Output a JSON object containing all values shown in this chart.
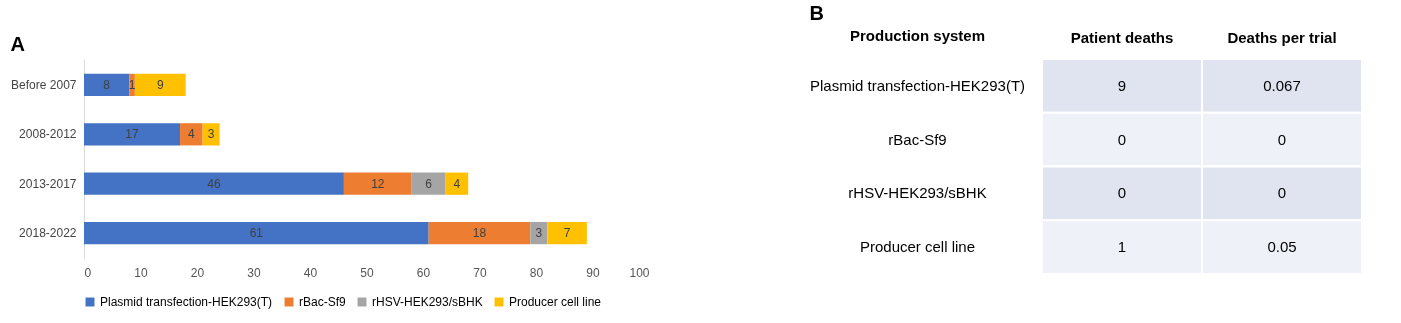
{
  "chart_data": [
    {
      "type": "bar",
      "title": "A",
      "orientation": "horizontal",
      "stacked": true,
      "data_labels": true,
      "legend": "bottom",
      "categories": [
        "Before 2007",
        "2008-2012",
        "2013-2017",
        "2018-2022"
      ],
      "series": [
        {
          "name": "Plasmid transfection-HEK293(T)",
          "color": "#4472c4",
          "values": [
            8,
            17,
            46,
            61
          ]
        },
        {
          "name": "rBac-Sf9",
          "color": "#ed7d31",
          "values": [
            1,
            4,
            12,
            18
          ]
        },
        {
          "name": "rHSV-HEK293/sBHK",
          "color": "#a5a5a5",
          "values": [
            null,
            null,
            6,
            3
          ]
        },
        {
          "name": "Producer cell line",
          "color": "#ffc000",
          "values": [
            9,
            3,
            4,
            7
          ]
        }
      ],
      "xlim": [
        0,
        100
      ],
      "xticks": [
        0,
        10,
        20,
        30,
        40,
        50,
        60,
        70,
        80,
        90,
        100
      ]
    },
    {
      "type": "heatmap",
      "title": "B",
      "ylabel": "Production system",
      "data_labels": true,
      "categories": [
        "Patient deaths",
        "Deaths per trial"
      ],
      "y_categories": [
        "Plasmid transfection-HEK293(T)",
        "rBac-Sf9",
        "rHSV-HEK293/sBHK",
        "Producer cell line"
      ],
      "cells": [
        [
          9,
          0.067
        ],
        [
          0,
          0
        ],
        [
          0,
          0
        ],
        [
          1,
          0.05
        ]
      ]
    }
  ]
}
